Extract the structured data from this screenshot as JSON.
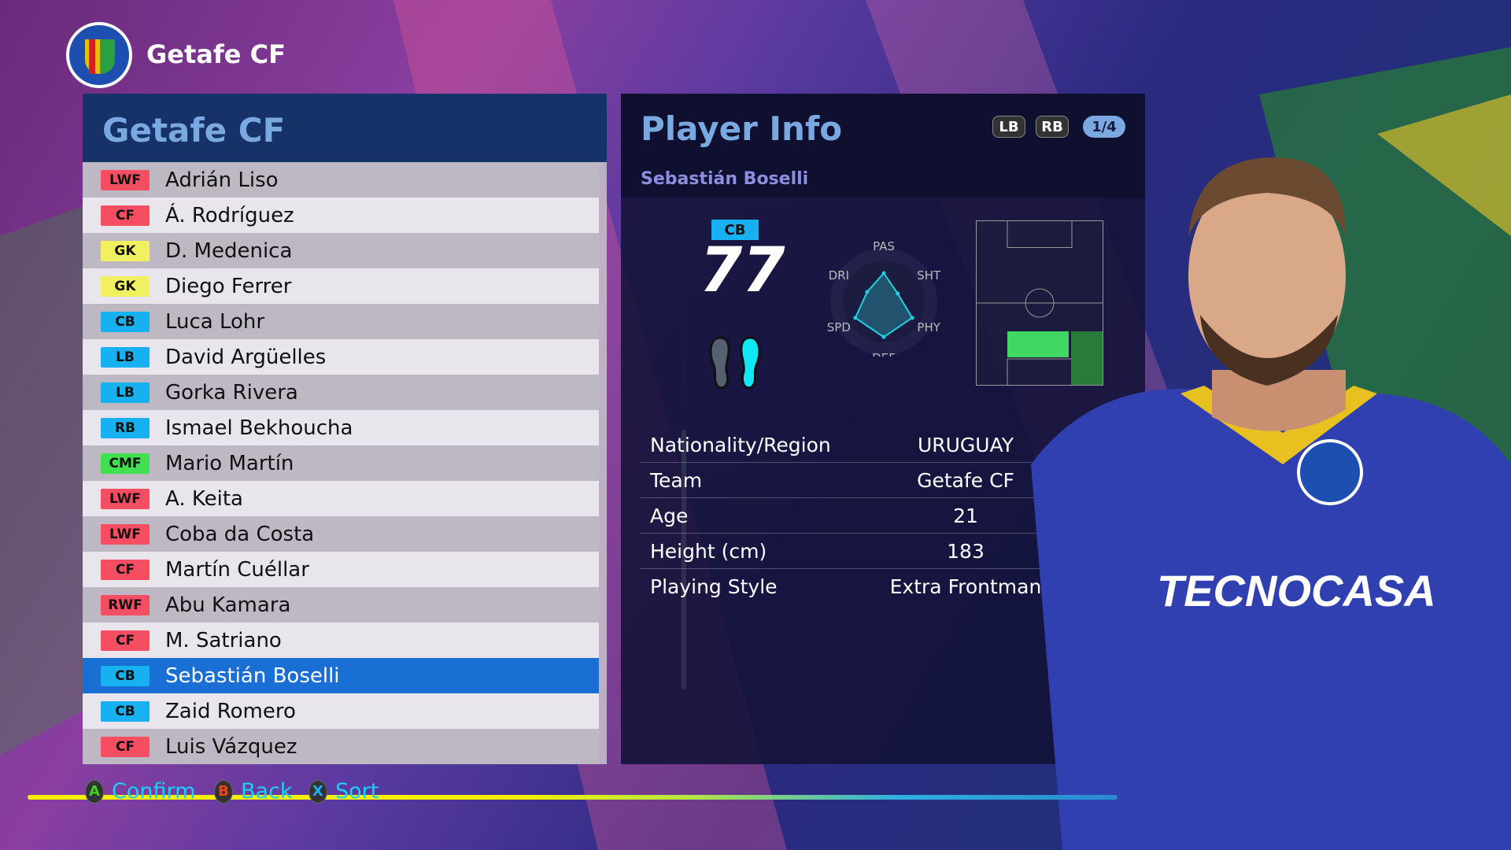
{
  "header": {
    "team_name": "Getafe CF"
  },
  "list": {
    "title": "Getafe CF",
    "selected_index": 14,
    "players": [
      {
        "pos": "LWF",
        "name": "Adrián Liso"
      },
      {
        "pos": "CF",
        "name": "Á. Rodríguez"
      },
      {
        "pos": "GK",
        "name": "D. Medenica"
      },
      {
        "pos": "GK",
        "name": "Diego Ferrer"
      },
      {
        "pos": "CB",
        "name": "Luca Lohr"
      },
      {
        "pos": "LB",
        "name": "David Argüelles"
      },
      {
        "pos": "LB",
        "name": "Gorka Rivera"
      },
      {
        "pos": "RB",
        "name": "Ismael Bekhoucha"
      },
      {
        "pos": "CMF",
        "name": "Mario Martín"
      },
      {
        "pos": "LWF",
        "name": "A. Keita"
      },
      {
        "pos": "LWF",
        "name": "Coba da Costa"
      },
      {
        "pos": "CF",
        "name": "Martín Cuéllar"
      },
      {
        "pos": "RWF",
        "name": "Abu Kamara"
      },
      {
        "pos": "CF",
        "name": "M. Satriano"
      },
      {
        "pos": "CB",
        "name": "Sebastián Boselli"
      },
      {
        "pos": "CB",
        "name": "Zaid Romero"
      },
      {
        "pos": "CF",
        "name": "Luis Vázquez"
      }
    ],
    "pos_colors": {
      "LWF": "#f54d62",
      "CF": "#f54d62",
      "RWF": "#f54d62",
      "GK": "#f0f060",
      "CB": "#17b0f0",
      "LB": "#17b0f0",
      "RB": "#17b0f0",
      "CMF": "#40e050"
    }
  },
  "info": {
    "title": "Player Info",
    "lb": "LB",
    "rb": "RB",
    "page": "1/4",
    "player_name": "Sebastián Boselli",
    "position": "CB",
    "rating": "77",
    "strong_foot": "right",
    "radar": {
      "labels": [
        "PAS",
        "SHT",
        "PHY",
        "DEF",
        "SPD",
        "DRI"
      ],
      "values": [
        0.62,
        0.35,
        0.72,
        0.78,
        0.72,
        0.42
      ]
    },
    "rows": [
      {
        "label": "Nationality/Region",
        "value": "URUGUAY"
      },
      {
        "label": "Team",
        "value": "Getafe CF"
      },
      {
        "label": "Age",
        "value": "21"
      },
      {
        "label": "Height (cm)",
        "value": "183"
      },
      {
        "label": "Playing Style",
        "value": "Extra Frontman"
      }
    ]
  },
  "footer": [
    {
      "key": "A",
      "label": "Confirm",
      "color": "#40d020"
    },
    {
      "key": "B",
      "label": "Back",
      "color": "#ff4010"
    },
    {
      "key": "X",
      "label": "Sort",
      "color": "#1ab0f8"
    }
  ]
}
